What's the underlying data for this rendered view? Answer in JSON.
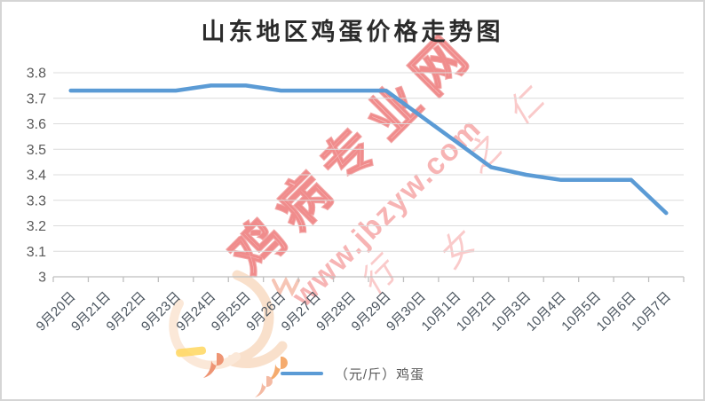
{
  "title": "山东地区鸡蛋价格走势图",
  "watermark": {
    "brand": "鸡病专业网",
    "url": "www.jbzyw.com",
    "script_chars": [
      "仁",
      "之",
      "女",
      "行"
    ],
    "red": "#F07070"
  },
  "legend": {
    "label": "（元/斤）鸡蛋"
  },
  "chart_data": {
    "type": "line",
    "title": "山东地区鸡蛋价格走势图",
    "xlabel": "",
    "ylabel": "",
    "grid": true,
    "legend_position": "bottom",
    "categories": [
      "9月20日",
      "9月21日",
      "9月22日",
      "9月23日",
      "9月24日",
      "9月25日",
      "9月26日",
      "9月27日",
      "9月28日",
      "9月29日",
      "9月30日",
      "10月1日",
      "10月2日",
      "10月3日",
      "10月4日",
      "10月5日",
      "10月6日",
      "10月7日"
    ],
    "series": [
      {
        "name": "（元/斤）鸡蛋",
        "values": [
          3.73,
          3.73,
          3.73,
          3.73,
          3.75,
          3.75,
          3.73,
          3.73,
          3.73,
          3.73,
          3.63,
          3.53,
          3.43,
          3.4,
          3.38,
          3.38,
          3.38,
          3.25
        ]
      }
    ],
    "ylim": [
      3.0,
      3.8
    ],
    "yticks": [
      {
        "label": "3",
        "value": 3.0
      },
      {
        "label": "3.1",
        "value": 3.1
      },
      {
        "label": "3.2",
        "value": 3.2
      },
      {
        "label": "3.3",
        "value": 3.3
      },
      {
        "label": "3.4",
        "value": 3.4
      },
      {
        "label": "3.5",
        "value": 3.5
      },
      {
        "label": "3.6",
        "value": 3.6
      },
      {
        "label": "3.7",
        "value": 3.7
      },
      {
        "label": "3.8",
        "value": 3.8
      }
    ],
    "colors": {
      "line": "#5B9BD5",
      "gridline": "#DCDCDC",
      "axis_line": "#BFBFBF",
      "axis_label": "#595959",
      "xtick_label": "#4A545E"
    }
  }
}
